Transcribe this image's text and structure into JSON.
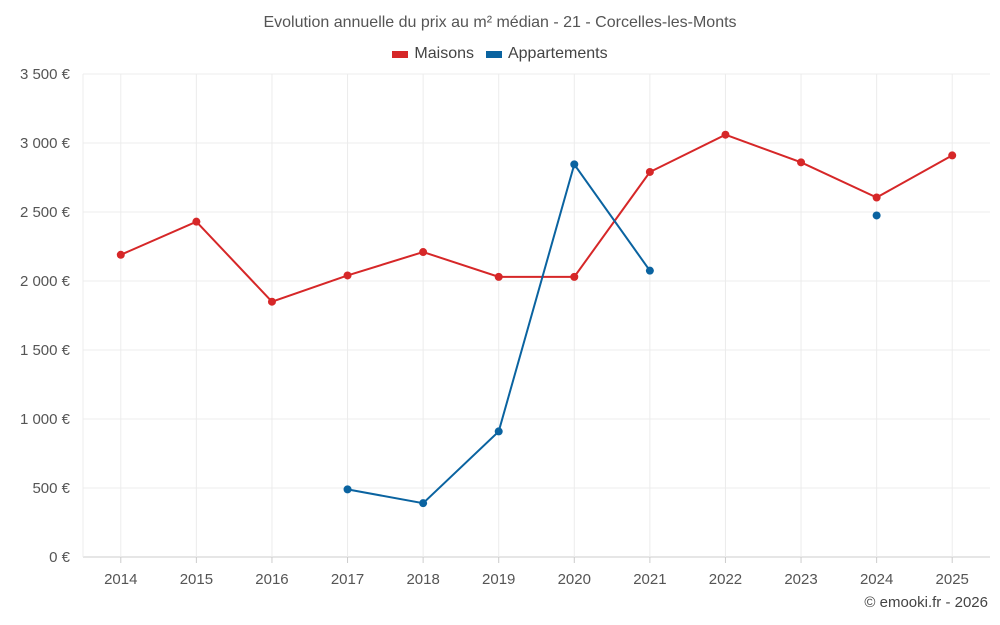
{
  "chart_data": {
    "type": "line",
    "title": "Evolution annuelle du prix au m² médian - 21 - Corcelles-les-Monts",
    "categories": [
      "2014",
      "2015",
      "2016",
      "2017",
      "2018",
      "2019",
      "2020",
      "2021",
      "2022",
      "2023",
      "2024",
      "2025"
    ],
    "series": [
      {
        "name": "Maisons",
        "color": "#d62728",
        "values": [
          2190,
          2430,
          1850,
          2040,
          2210,
          2030,
          2030,
          2790,
          3060,
          2860,
          2605,
          2910
        ]
      },
      {
        "name": "Appartements",
        "color": "#0a63a0",
        "values": [
          null,
          null,
          null,
          490,
          390,
          910,
          2845,
          2075,
          null,
          null,
          2475,
          null
        ]
      }
    ],
    "yticks": [
      0,
      500,
      1000,
      1500,
      2000,
      2500,
      3000,
      3500
    ],
    "ytick_labels": [
      "0 €",
      "500 €",
      "1 000 €",
      "1 500 €",
      "2 000 €",
      "2 500 €",
      "3 000 €",
      "3 500 €"
    ],
    "ylim": [
      0,
      3500
    ],
    "xlabel": "",
    "ylabel": "",
    "grid": true,
    "legend_position": "top-center"
  },
  "credit": "© emooki.fr - 2026"
}
